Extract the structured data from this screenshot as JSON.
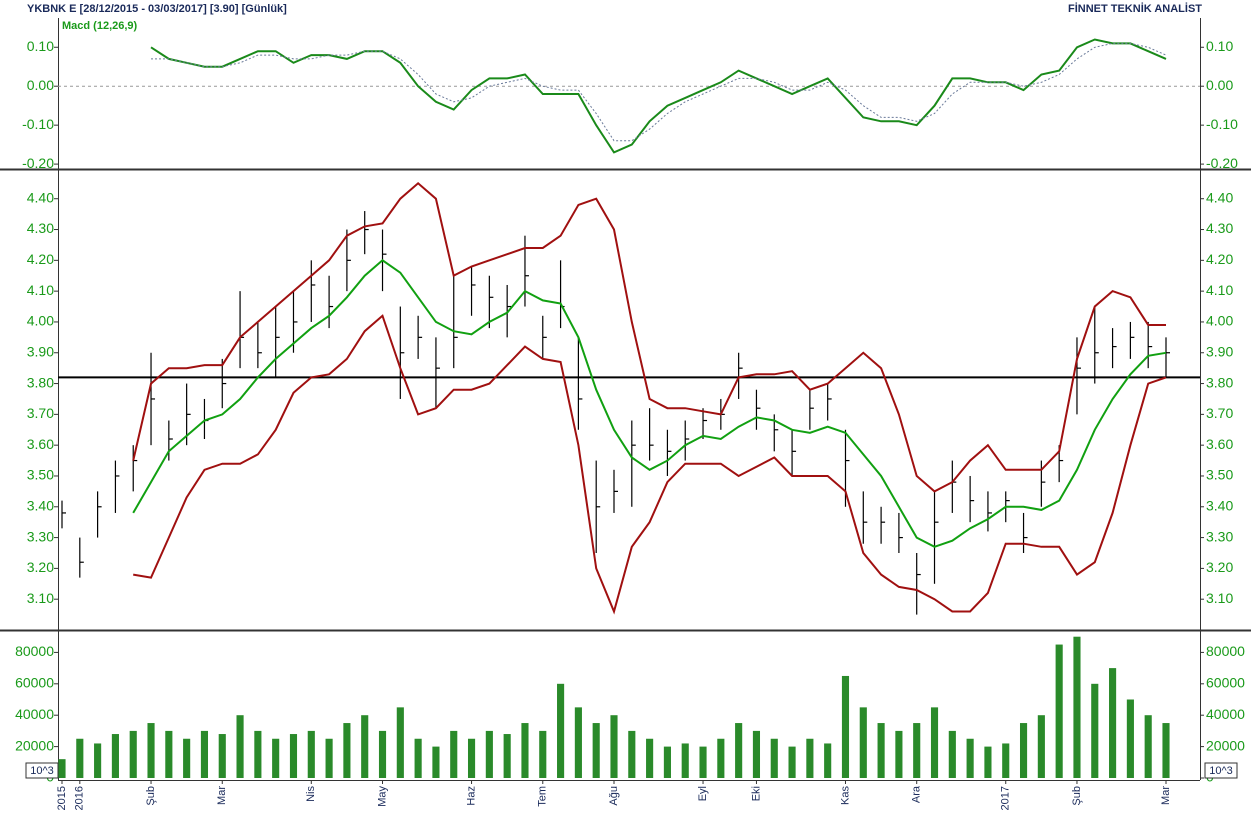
{
  "header": {
    "title": "YKBNK E  [28/12/2015 - 03/03/2017]  [3.90]  [Günlük]",
    "brand": "FİNNET TEKNİK ANALİST"
  },
  "chart_data": [
    {
      "type": "line",
      "title": "Macd (12,26,9)",
      "title_color": "#1a9a1a",
      "ylim": [
        -0.21,
        0.17
      ],
      "yticks": [
        {
          "value": 0.1,
          "label": "0.10"
        },
        {
          "value": 0,
          "label": "0.00"
        },
        {
          "value": -0.1,
          "label": "-0.10"
        },
        {
          "value": -0.2,
          "label": "-0.20"
        }
      ],
      "hline": 0,
      "hline_color": "#999999",
      "hline_dashed": true,
      "series": [
        {
          "color": "#1a8a1a",
          "dashed": false,
          "values": [
            null,
            null,
            null,
            null,
            null,
            0.1,
            0.07,
            0.06,
            0.05,
            0.05,
            0.07,
            0.09,
            0.09,
            0.06,
            0.08,
            0.08,
            0.07,
            0.09,
            0.09,
            0.06,
            0.0,
            -0.04,
            -0.06,
            -0.01,
            0.02,
            0.02,
            0.03,
            -0.02,
            -0.02,
            -0.02,
            -0.1,
            -0.17,
            -0.15,
            -0.09,
            -0.05,
            -0.03,
            -0.01,
            0.01,
            0.04,
            0.02,
            0.0,
            -0.02,
            0.0,
            0.02,
            -0.03,
            -0.08,
            -0.09,
            -0.09,
            -0.1,
            -0.05,
            0.02,
            0.02,
            0.01,
            0.01,
            -0.01,
            0.03,
            0.04,
            0.1,
            0.12,
            0.11,
            0.11,
            0.09,
            0.07
          ]
        },
        {
          "color": "#6a7a99",
          "dashed": true,
          "values": [
            null,
            null,
            null,
            null,
            null,
            0.07,
            0.07,
            0.06,
            0.05,
            0.05,
            0.06,
            0.08,
            0.08,
            0.07,
            0.07,
            0.08,
            0.08,
            0.09,
            0.09,
            0.07,
            0.03,
            -0.02,
            -0.04,
            -0.03,
            0.0,
            0.01,
            0.02,
            0.0,
            -0.01,
            -0.01,
            -0.07,
            -0.14,
            -0.14,
            -0.11,
            -0.07,
            -0.04,
            -0.02,
            0.0,
            0.02,
            0.02,
            0.01,
            -0.01,
            -0.01,
            0.01,
            -0.01,
            -0.05,
            -0.08,
            -0.08,
            -0.09,
            -0.07,
            -0.02,
            0.01,
            0.01,
            0.01,
            0.0,
            0.01,
            0.03,
            0.07,
            0.1,
            0.11,
            0.11,
            0.1,
            0.08
          ]
        }
      ]
    },
    {
      "type": "hlc",
      "color": "#000000",
      "ylim": [
        3.0,
        4.49
      ],
      "yticks": [
        {
          "value": 3.1,
          "label": "3.10"
        },
        {
          "value": 3.2,
          "label": "3.20"
        },
        {
          "value": 3.3,
          "label": "3.30"
        },
        {
          "value": 3.4,
          "label": "3.40"
        },
        {
          "value": 3.5,
          "label": "3.50"
        },
        {
          "value": 3.6,
          "label": "3.60"
        },
        {
          "value": 3.7,
          "label": "3.70"
        },
        {
          "value": 3.8,
          "label": "3.80"
        },
        {
          "value": 3.9,
          "label": "3.90"
        },
        {
          "value": 4.0,
          "label": "4.00"
        },
        {
          "value": 4.1,
          "label": "4.10"
        },
        {
          "value": 4.2,
          "label": "4.20"
        },
        {
          "value": 4.3,
          "label": "4.30"
        },
        {
          "value": 4.4,
          "label": "4.40"
        }
      ],
      "hline": 3.82,
      "hline_color": "#000000",
      "hline_dashed": false,
      "high": [
        3.42,
        3.3,
        3.45,
        3.55,
        3.6,
        3.9,
        3.68,
        3.8,
        3.75,
        3.88,
        4.1,
        4.0,
        4.05,
        4.1,
        4.2,
        4.15,
        4.3,
        4.36,
        4.3,
        4.05,
        4.02,
        3.95,
        4.15,
        4.18,
        4.15,
        4.12,
        4.28,
        4.02,
        4.2,
        3.95,
        3.55,
        3.52,
        3.68,
        3.72,
        3.65,
        3.68,
        3.72,
        3.75,
        3.9,
        3.78,
        3.7,
        3.65,
        3.78,
        3.8,
        3.65,
        3.45,
        3.4,
        3.38,
        3.25,
        3.45,
        3.55,
        3.5,
        3.45,
        3.45,
        3.38,
        3.55,
        3.6,
        3.95,
        4.05,
        3.98,
        4.0,
        4.0,
        3.95
      ],
      "low": [
        3.33,
        3.17,
        3.3,
        3.38,
        3.45,
        3.6,
        3.55,
        3.6,
        3.62,
        3.72,
        3.85,
        3.85,
        3.82,
        3.9,
        4.0,
        3.98,
        4.1,
        4.22,
        4.1,
        3.75,
        3.88,
        3.72,
        3.85,
        4.02,
        3.98,
        3.95,
        4.05,
        3.88,
        3.98,
        3.65,
        3.25,
        3.38,
        3.4,
        3.55,
        3.5,
        3.55,
        3.62,
        3.65,
        3.75,
        3.65,
        3.58,
        3.5,
        3.65,
        3.68,
        3.4,
        3.28,
        3.28,
        3.25,
        3.05,
        3.15,
        3.38,
        3.35,
        3.32,
        3.35,
        3.25,
        3.4,
        3.48,
        3.7,
        3.8,
        3.85,
        3.88,
        3.85,
        3.82
      ],
      "close": [
        3.38,
        3.22,
        3.4,
        3.5,
        3.55,
        3.75,
        3.62,
        3.7,
        3.68,
        3.8,
        3.95,
        3.9,
        3.95,
        4.0,
        4.12,
        4.05,
        4.2,
        4.3,
        4.22,
        3.9,
        3.95,
        3.85,
        3.95,
        4.12,
        4.08,
        4.05,
        4.15,
        3.95,
        4.05,
        3.75,
        3.4,
        3.45,
        3.6,
        3.6,
        3.58,
        3.62,
        3.68,
        3.7,
        3.85,
        3.72,
        3.65,
        3.58,
        3.72,
        3.75,
        3.55,
        3.35,
        3.35,
        3.3,
        3.18,
        3.35,
        3.48,
        3.42,
        3.38,
        3.42,
        3.3,
        3.48,
        3.55,
        3.85,
        3.9,
        3.92,
        3.95,
        3.92,
        3.9
      ],
      "series": [
        {
          "color": "#a01010",
          "dashed": false,
          "values": [
            null,
            null,
            null,
            null,
            3.55,
            3.8,
            3.85,
            3.85,
            3.86,
            3.86,
            3.95,
            4.0,
            4.05,
            4.1,
            4.15,
            4.2,
            4.28,
            4.31,
            4.32,
            4.4,
            4.45,
            4.4,
            4.15,
            4.18,
            4.2,
            4.22,
            4.24,
            4.24,
            4.28,
            4.38,
            4.4,
            4.3,
            4.0,
            3.75,
            3.72,
            3.72,
            3.71,
            3.7,
            3.82,
            3.83,
            3.83,
            3.84,
            3.78,
            3.8,
            3.85,
            3.9,
            3.85,
            3.7,
            3.5,
            3.45,
            3.48,
            3.55,
            3.6,
            3.52,
            3.52,
            3.52,
            3.58,
            3.88,
            4.05,
            4.1,
            4.08,
            3.99,
            3.99
          ]
        },
        {
          "color": "#11a011",
          "dashed": false,
          "values": [
            null,
            null,
            null,
            null,
            3.38,
            3.48,
            3.58,
            3.63,
            3.68,
            3.7,
            3.75,
            3.82,
            3.88,
            3.93,
            3.98,
            4.02,
            4.08,
            4.15,
            4.2,
            4.16,
            4.08,
            4.0,
            3.97,
            3.96,
            4.0,
            4.03,
            4.1,
            4.07,
            4.06,
            3.95,
            3.78,
            3.65,
            3.56,
            3.52,
            3.55,
            3.6,
            3.63,
            3.62,
            3.66,
            3.69,
            3.68,
            3.65,
            3.64,
            3.66,
            3.64,
            3.57,
            3.5,
            3.4,
            3.3,
            3.27,
            3.29,
            3.33,
            3.36,
            3.4,
            3.4,
            3.39,
            3.42,
            3.52,
            3.65,
            3.75,
            3.83,
            3.89,
            3.9
          ]
        },
        {
          "color": "#a01010",
          "dashed": false,
          "values": [
            null,
            null,
            null,
            null,
            3.18,
            3.17,
            3.3,
            3.43,
            3.52,
            3.54,
            3.54,
            3.57,
            3.65,
            3.77,
            3.82,
            3.83,
            3.88,
            3.97,
            4.02,
            3.85,
            3.7,
            3.72,
            3.78,
            3.78,
            3.8,
            3.86,
            3.92,
            3.88,
            3.87,
            3.6,
            3.2,
            3.06,
            3.27,
            3.35,
            3.48,
            3.54,
            3.54,
            3.54,
            3.5,
            3.53,
            3.56,
            3.5,
            3.5,
            3.5,
            3.45,
            3.25,
            3.18,
            3.14,
            3.13,
            3.1,
            3.06,
            3.06,
            3.12,
            3.28,
            3.28,
            3.27,
            3.27,
            3.18,
            3.22,
            3.38,
            3.6,
            3.8,
            3.82
          ]
        }
      ]
    },
    {
      "type": "bar",
      "color": "#2a8a2a",
      "unit_label": "10^3",
      "ylim": [
        0,
        93000
      ],
      "yticks": [
        0,
        20000,
        40000,
        60000,
        80000
      ],
      "categories": [
        "2015",
        "2016",
        null,
        null,
        null,
        "Şub",
        null,
        null,
        null,
        "Mar",
        null,
        null,
        null,
        null,
        "Nis",
        null,
        null,
        null,
        "May",
        null,
        null,
        null,
        null,
        "Haz",
        null,
        null,
        null,
        "Tem",
        null,
        null,
        null,
        "Ağu",
        null,
        null,
        null,
        null,
        "Eyl",
        null,
        null,
        "Eki",
        null,
        null,
        null,
        null,
        "Kas",
        null,
        null,
        null,
        "Ara",
        null,
        null,
        null,
        null,
        "2017",
        null,
        null,
        null,
        "Şub",
        null,
        null,
        null,
        null,
        "Mar"
      ],
      "values": [
        12000,
        25000,
        22000,
        28000,
        30000,
        35000,
        30000,
        25000,
        30000,
        28000,
        40000,
        30000,
        25000,
        28000,
        30000,
        25000,
        35000,
        40000,
        30000,
        45000,
        25000,
        20000,
        30000,
        25000,
        30000,
        28000,
        35000,
        30000,
        60000,
        45000,
        35000,
        40000,
        30000,
        25000,
        20000,
        22000,
        20000,
        25000,
        35000,
        30000,
        25000,
        20000,
        25000,
        22000,
        65000,
        45000,
        35000,
        30000,
        35000,
        45000,
        30000,
        25000,
        20000,
        22000,
        35000,
        40000,
        85000,
        90000,
        60000,
        70000,
        50000,
        40000,
        35000
      ]
    }
  ]
}
